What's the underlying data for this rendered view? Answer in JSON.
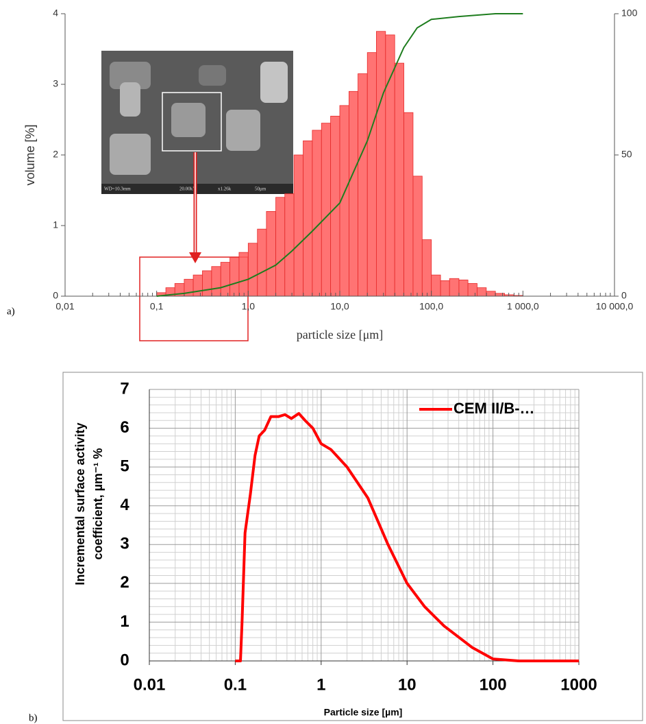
{
  "chart_data": [
    {
      "type": "histogram",
      "panel_label": "a)",
      "xlabel": "particle size [μm]",
      "ylabel": "volume [%]",
      "xscale": "log",
      "xlim": [
        0.01,
        10000
      ],
      "xticks": [
        {
          "value": 0.01,
          "label": "0,01"
        },
        {
          "value": 0.1,
          "label": "0,1"
        },
        {
          "value": 1,
          "label": "1,0"
        },
        {
          "value": 10,
          "label": "10,0"
        },
        {
          "value": 100,
          "label": "100,0"
        },
        {
          "value": 1000,
          "label": "1 000,0"
        },
        {
          "value": 10000,
          "label": "10 000,0"
        }
      ],
      "ylim": [
        0,
        4
      ],
      "yticks": [
        0,
        1,
        2,
        3,
        4
      ],
      "y2lim": [
        0,
        100
      ],
      "y2ticks": [
        0,
        50,
        100
      ],
      "color": "#ff5a5a",
      "bins": [
        0.1,
        0.126,
        0.158,
        0.2,
        0.251,
        0.316,
        0.398,
        0.501,
        0.631,
        0.794,
        1,
        1.26,
        1.58,
        2,
        2.51,
        3.16,
        3.98,
        5.01,
        6.31,
        7.94,
        10,
        12.6,
        15.8,
        20,
        25.1,
        31.6,
        39.8,
        50.1,
        63.1,
        79.4,
        100,
        126,
        158,
        200,
        251,
        316,
        398,
        501,
        631,
        794,
        1000
      ],
      "counts": [
        0.05,
        0.12,
        0.18,
        0.24,
        0.3,
        0.36,
        0.42,
        0.48,
        0.55,
        0.62,
        0.75,
        0.95,
        1.2,
        1.4,
        1.45,
        2.0,
        2.2,
        2.35,
        2.45,
        2.55,
        2.7,
        2.9,
        3.15,
        3.45,
        3.75,
        3.7,
        3.3,
        2.6,
        1.7,
        0.8,
        0.3,
        0.22,
        0.25,
        0.23,
        0.18,
        0.12,
        0.07,
        0.04,
        0.02,
        0.01
      ],
      "curve": {
        "color": "#1e7d1e",
        "axis": "y2",
        "x": [
          0.1,
          0.2,
          0.5,
          1,
          2,
          3,
          5,
          10,
          20,
          30,
          50,
          70,
          100,
          200,
          500,
          1000
        ],
        "values": [
          0,
          1,
          3,
          6,
          11,
          16,
          23,
          33,
          55,
          72,
          88,
          95,
          98,
          99,
          100,
          100
        ]
      },
      "inset_labels": [
        "WD=10.3mm",
        "20.00kV",
        "x1.26k",
        "50μm"
      ]
    },
    {
      "type": "line",
      "panel_label": "b)",
      "xlabel": "Particle size [µm]",
      "ylabel": [
        "Incremental surface activity",
        "coefficient, µm⁻¹ %"
      ],
      "xscale": "log",
      "xlim": [
        0.01,
        1000
      ],
      "xticks": [
        0.01,
        0.1,
        1,
        10,
        100,
        1000
      ],
      "ylim": [
        0,
        7
      ],
      "yticks": [
        0,
        1,
        2,
        3,
        4,
        5,
        6,
        7
      ],
      "grid": true,
      "legend": "upper right",
      "series": [
        {
          "name": "CEM II/B-…",
          "color": "#ff0000",
          "x": [
            0.1,
            0.115,
            0.12,
            0.13,
            0.15,
            0.17,
            0.19,
            0.22,
            0.26,
            0.32,
            0.38,
            0.45,
            0.55,
            0.65,
            0.8,
            1,
            1.3,
            2,
            3.5,
            6,
            10,
            16,
            27,
            57,
            100,
            200,
            1000
          ],
          "values": [
            0,
            0,
            1.0,
            3.3,
            4.3,
            5.3,
            5.8,
            5.95,
            6.3,
            6.3,
            6.35,
            6.25,
            6.38,
            6.2,
            6.0,
            5.6,
            5.45,
            5.0,
            4.2,
            3.0,
            2.0,
            1.4,
            0.9,
            0.35,
            0.05,
            0,
            0
          ]
        }
      ]
    }
  ]
}
